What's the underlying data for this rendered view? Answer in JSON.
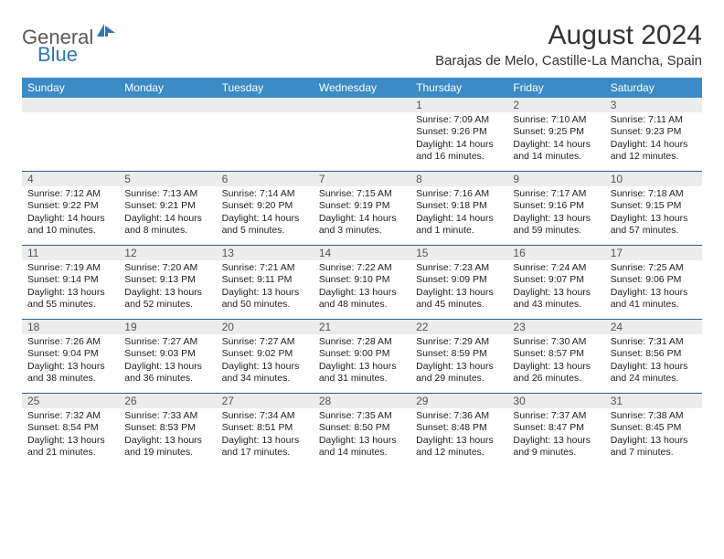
{
  "logo": {
    "part1": "General",
    "part2": "Blue"
  },
  "title": "August 2024",
  "location": "Barajas de Melo, Castille-La Mancha, Spain",
  "colors": {
    "header_bg": "#3b8bc6",
    "header_text": "#ffffff",
    "daynum_bg": "#ececec",
    "week_border": "#2e5d8a",
    "logo_gray": "#595959",
    "logo_blue": "#2e75b6"
  },
  "day_names": [
    "Sunday",
    "Monday",
    "Tuesday",
    "Wednesday",
    "Thursday",
    "Friday",
    "Saturday"
  ],
  "weeks": [
    {
      "nums": [
        "",
        "",
        "",
        "",
        "1",
        "2",
        "3"
      ],
      "cells": [
        {},
        {},
        {},
        {},
        {
          "sunrise": "Sunrise: 7:09 AM",
          "sunset": "Sunset: 9:26 PM",
          "daylight1": "Daylight: 14 hours",
          "daylight2": "and 16 minutes."
        },
        {
          "sunrise": "Sunrise: 7:10 AM",
          "sunset": "Sunset: 9:25 PM",
          "daylight1": "Daylight: 14 hours",
          "daylight2": "and 14 minutes."
        },
        {
          "sunrise": "Sunrise: 7:11 AM",
          "sunset": "Sunset: 9:23 PM",
          "daylight1": "Daylight: 14 hours",
          "daylight2": "and 12 minutes."
        }
      ]
    },
    {
      "nums": [
        "4",
        "5",
        "6",
        "7",
        "8",
        "9",
        "10"
      ],
      "cells": [
        {
          "sunrise": "Sunrise: 7:12 AM",
          "sunset": "Sunset: 9:22 PM",
          "daylight1": "Daylight: 14 hours",
          "daylight2": "and 10 minutes."
        },
        {
          "sunrise": "Sunrise: 7:13 AM",
          "sunset": "Sunset: 9:21 PM",
          "daylight1": "Daylight: 14 hours",
          "daylight2": "and 8 minutes."
        },
        {
          "sunrise": "Sunrise: 7:14 AM",
          "sunset": "Sunset: 9:20 PM",
          "daylight1": "Daylight: 14 hours",
          "daylight2": "and 5 minutes."
        },
        {
          "sunrise": "Sunrise: 7:15 AM",
          "sunset": "Sunset: 9:19 PM",
          "daylight1": "Daylight: 14 hours",
          "daylight2": "and 3 minutes."
        },
        {
          "sunrise": "Sunrise: 7:16 AM",
          "sunset": "Sunset: 9:18 PM",
          "daylight1": "Daylight: 14 hours",
          "daylight2": "and 1 minute."
        },
        {
          "sunrise": "Sunrise: 7:17 AM",
          "sunset": "Sunset: 9:16 PM",
          "daylight1": "Daylight: 13 hours",
          "daylight2": "and 59 minutes."
        },
        {
          "sunrise": "Sunrise: 7:18 AM",
          "sunset": "Sunset: 9:15 PM",
          "daylight1": "Daylight: 13 hours",
          "daylight2": "and 57 minutes."
        }
      ]
    },
    {
      "nums": [
        "11",
        "12",
        "13",
        "14",
        "15",
        "16",
        "17"
      ],
      "cells": [
        {
          "sunrise": "Sunrise: 7:19 AM",
          "sunset": "Sunset: 9:14 PM",
          "daylight1": "Daylight: 13 hours",
          "daylight2": "and 55 minutes."
        },
        {
          "sunrise": "Sunrise: 7:20 AM",
          "sunset": "Sunset: 9:13 PM",
          "daylight1": "Daylight: 13 hours",
          "daylight2": "and 52 minutes."
        },
        {
          "sunrise": "Sunrise: 7:21 AM",
          "sunset": "Sunset: 9:11 PM",
          "daylight1": "Daylight: 13 hours",
          "daylight2": "and 50 minutes."
        },
        {
          "sunrise": "Sunrise: 7:22 AM",
          "sunset": "Sunset: 9:10 PM",
          "daylight1": "Daylight: 13 hours",
          "daylight2": "and 48 minutes."
        },
        {
          "sunrise": "Sunrise: 7:23 AM",
          "sunset": "Sunset: 9:09 PM",
          "daylight1": "Daylight: 13 hours",
          "daylight2": "and 45 minutes."
        },
        {
          "sunrise": "Sunrise: 7:24 AM",
          "sunset": "Sunset: 9:07 PM",
          "daylight1": "Daylight: 13 hours",
          "daylight2": "and 43 minutes."
        },
        {
          "sunrise": "Sunrise: 7:25 AM",
          "sunset": "Sunset: 9:06 PM",
          "daylight1": "Daylight: 13 hours",
          "daylight2": "and 41 minutes."
        }
      ]
    },
    {
      "nums": [
        "18",
        "19",
        "20",
        "21",
        "22",
        "23",
        "24"
      ],
      "cells": [
        {
          "sunrise": "Sunrise: 7:26 AM",
          "sunset": "Sunset: 9:04 PM",
          "daylight1": "Daylight: 13 hours",
          "daylight2": "and 38 minutes."
        },
        {
          "sunrise": "Sunrise: 7:27 AM",
          "sunset": "Sunset: 9:03 PM",
          "daylight1": "Daylight: 13 hours",
          "daylight2": "and 36 minutes."
        },
        {
          "sunrise": "Sunrise: 7:27 AM",
          "sunset": "Sunset: 9:02 PM",
          "daylight1": "Daylight: 13 hours",
          "daylight2": "and 34 minutes."
        },
        {
          "sunrise": "Sunrise: 7:28 AM",
          "sunset": "Sunset: 9:00 PM",
          "daylight1": "Daylight: 13 hours",
          "daylight2": "and 31 minutes."
        },
        {
          "sunrise": "Sunrise: 7:29 AM",
          "sunset": "Sunset: 8:59 PM",
          "daylight1": "Daylight: 13 hours",
          "daylight2": "and 29 minutes."
        },
        {
          "sunrise": "Sunrise: 7:30 AM",
          "sunset": "Sunset: 8:57 PM",
          "daylight1": "Daylight: 13 hours",
          "daylight2": "and 26 minutes."
        },
        {
          "sunrise": "Sunrise: 7:31 AM",
          "sunset": "Sunset: 8:56 PM",
          "daylight1": "Daylight: 13 hours",
          "daylight2": "and 24 minutes."
        }
      ]
    },
    {
      "nums": [
        "25",
        "26",
        "27",
        "28",
        "29",
        "30",
        "31"
      ],
      "cells": [
        {
          "sunrise": "Sunrise: 7:32 AM",
          "sunset": "Sunset: 8:54 PM",
          "daylight1": "Daylight: 13 hours",
          "daylight2": "and 21 minutes."
        },
        {
          "sunrise": "Sunrise: 7:33 AM",
          "sunset": "Sunset: 8:53 PM",
          "daylight1": "Daylight: 13 hours",
          "daylight2": "and 19 minutes."
        },
        {
          "sunrise": "Sunrise: 7:34 AM",
          "sunset": "Sunset: 8:51 PM",
          "daylight1": "Daylight: 13 hours",
          "daylight2": "and 17 minutes."
        },
        {
          "sunrise": "Sunrise: 7:35 AM",
          "sunset": "Sunset: 8:50 PM",
          "daylight1": "Daylight: 13 hours",
          "daylight2": "and 14 minutes."
        },
        {
          "sunrise": "Sunrise: 7:36 AM",
          "sunset": "Sunset: 8:48 PM",
          "daylight1": "Daylight: 13 hours",
          "daylight2": "and 12 minutes."
        },
        {
          "sunrise": "Sunrise: 7:37 AM",
          "sunset": "Sunset: 8:47 PM",
          "daylight1": "Daylight: 13 hours",
          "daylight2": "and 9 minutes."
        },
        {
          "sunrise": "Sunrise: 7:38 AM",
          "sunset": "Sunset: 8:45 PM",
          "daylight1": "Daylight: 13 hours",
          "daylight2": "and 7 minutes."
        }
      ]
    }
  ]
}
